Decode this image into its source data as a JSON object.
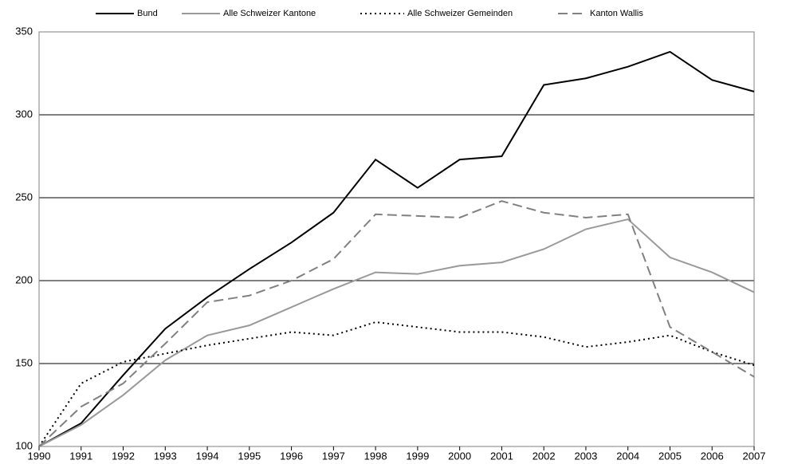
{
  "chart_data": {
    "type": "line",
    "x": [
      1990,
      1991,
      1992,
      1993,
      1994,
      1995,
      1996,
      1997,
      1998,
      1999,
      2000,
      2001,
      2002,
      2003,
      2004,
      2005,
      2006,
      2007
    ],
    "xlim": [
      1990,
      2007
    ],
    "xticks": [
      1990,
      1991,
      1992,
      1993,
      1994,
      1995,
      1996,
      1997,
      1998,
      1999,
      2000,
      2001,
      2002,
      2003,
      2004,
      2005,
      2006,
      2007
    ],
    "ylim": [
      100,
      350
    ],
    "yticks": [
      100,
      150,
      200,
      250,
      300,
      350
    ],
    "grid": true,
    "legend": "top",
    "series": [
      {
        "name": "Bund",
        "color": "#000000",
        "dash": "solid",
        "values": [
          100,
          114,
          143,
          171,
          190,
          207,
          223,
          241,
          273,
          256,
          273,
          275,
          318,
          322,
          329,
          338,
          321,
          314
        ]
      },
      {
        "name": "Alle Schweizer Kantone",
        "color": "#999999",
        "dash": "solid",
        "values": [
          100,
          113,
          131,
          152,
          167,
          173,
          184,
          195,
          205,
          204,
          209,
          211,
          219,
          231,
          237,
          214,
          205,
          193
        ]
      },
      {
        "name": "Alle Schweizer Gemeinden",
        "color": "#000000",
        "dash": "dotted",
        "values": [
          100,
          138,
          151,
          156,
          161,
          165,
          169,
          167,
          175,
          172,
          169,
          169,
          166,
          160,
          163,
          167,
          157,
          149
        ]
      },
      {
        "name": "Kanton Wallis",
        "color": "#808080",
        "dash": "dashed",
        "values": [
          100,
          124,
          138,
          162,
          187,
          191,
          200,
          213,
          240,
          239,
          238,
          248,
          241,
          238,
          240,
          172,
          157,
          142
        ]
      }
    ]
  }
}
